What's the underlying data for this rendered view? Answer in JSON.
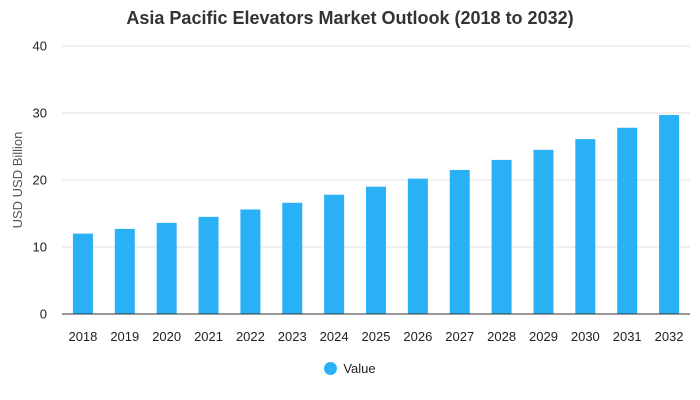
{
  "chart_data": {
    "type": "bar",
    "title": "Asia Pacific Elevators Market Outlook (2018 to 2032)",
    "xlabel": "",
    "ylabel": "USD USD Billion",
    "categories": [
      "2018",
      "2019",
      "2020",
      "2021",
      "2022",
      "2023",
      "2024",
      "2025",
      "2026",
      "2027",
      "2028",
      "2029",
      "2030",
      "2031",
      "2032"
    ],
    "series": [
      {
        "name": "Value",
        "color": "#2ab0f5",
        "values": [
          12.0,
          12.7,
          13.6,
          14.5,
          15.6,
          16.6,
          17.8,
          19.0,
          20.2,
          21.5,
          23.0,
          24.5,
          26.1,
          27.8,
          29.7
        ]
      }
    ],
    "ylim": [
      0,
      40
    ],
    "yticks": [
      0,
      10,
      20,
      30,
      40
    ],
    "grid": true,
    "legend_position": "bottom-center"
  }
}
